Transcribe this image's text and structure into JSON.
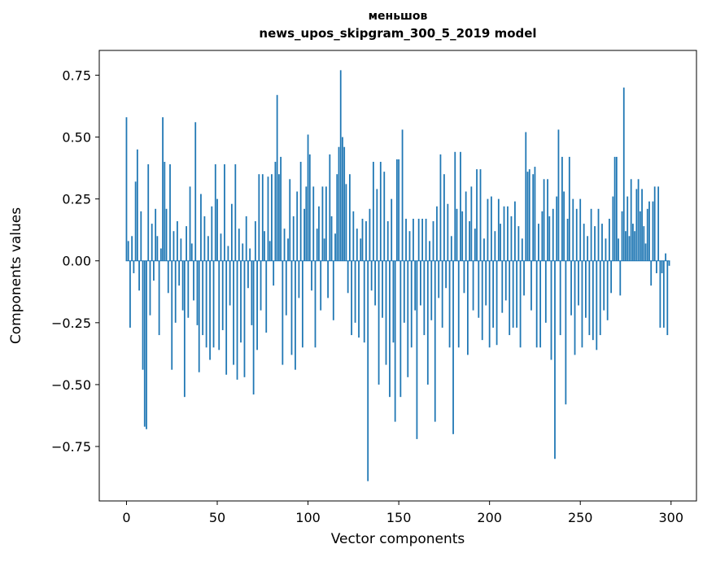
{
  "chart": {
    "title_line1": "меньшов",
    "title_line2": "news_upos_skipgram_300_5_2019 model",
    "xlabel": "Vector components",
    "ylabel": "Components values"
  },
  "chart_data": {
    "type": "bar",
    "title": "меньшов\nnews_upos_skipgram_300_5_2019 model",
    "xlabel": "Vector components",
    "ylabel": "Components values",
    "bar_color": "#1f77b4",
    "grid": false,
    "legend": "none",
    "xlim": [
      -15,
      314
    ],
    "ylim": [
      -0.97,
      0.85
    ],
    "xticks": [
      0,
      50,
      100,
      150,
      200,
      250,
      300
    ],
    "xtick_labels": [
      "0",
      "50",
      "100",
      "150",
      "200",
      "250",
      "300"
    ],
    "yticks": [
      -0.75,
      -0.5,
      -0.25,
      0,
      0.25,
      0.5,
      0.75
    ],
    "ytick_labels": [
      "−0.75",
      "−0.50",
      "−0.25",
      "0.00",
      "0.25",
      "0.50",
      "0.75"
    ],
    "n_components": 300,
    "values": [
      0.58,
      0.08,
      -0.27,
      0.1,
      -0.05,
      0.32,
      0.45,
      -0.12,
      0.2,
      -0.44,
      -0.67,
      -0.68,
      0.39,
      -0.22,
      0.15,
      -0.08,
      0.21,
      0.1,
      -0.3,
      0.05,
      0.58,
      0.4,
      0.21,
      -0.13,
      0.39,
      -0.44,
      0.12,
      -0.25,
      0.16,
      -0.1,
      0.09,
      -0.2,
      -0.55,
      0.14,
      -0.23,
      0.3,
      0.07,
      -0.16,
      0.56,
      -0.26,
      -0.45,
      0.27,
      -0.3,
      0.18,
      -0.35,
      0.1,
      -0.4,
      0.22,
      -0.35,
      0.39,
      0.25,
      -0.36,
      0.11,
      -0.28,
      0.39,
      -0.46,
      0.06,
      -0.18,
      0.23,
      -0.42,
      0.39,
      -0.48,
      0.13,
      -0.33,
      0.07,
      -0.47,
      0.18,
      -0.11,
      0.05,
      -0.26,
      -0.54,
      0.16,
      -0.36,
      0.35,
      -0.2,
      0.35,
      0.12,
      -0.29,
      0.34,
      0.08,
      0.35,
      -0.1,
      0.4,
      0.67,
      0.35,
      0.42,
      -0.42,
      0.13,
      -0.22,
      0.09,
      0.33,
      -0.38,
      0.18,
      -0.44,
      0.28,
      -0.15,
      0.4,
      -0.35,
      0.21,
      0.3,
      0.51,
      0.43,
      -0.12,
      0.3,
      -0.35,
      0.13,
      0.22,
      -0.2,
      0.3,
      0.09,
      0.3,
      -0.15,
      0.43,
      0.18,
      -0.24,
      0.11,
      0.35,
      0.46,
      0.77,
      0.5,
      0.46,
      0.31,
      -0.13,
      0.35,
      -0.3,
      0.2,
      -0.25,
      0.13,
      -0.31,
      0.09,
      0.17,
      -0.33,
      0.16,
      -0.89,
      0.21,
      -0.12,
      0.4,
      -0.18,
      0.29,
      -0.5,
      0.4,
      -0.23,
      0.36,
      -0.42,
      0.16,
      -0.55,
      0.25,
      -0.33,
      -0.65,
      0.41,
      0.41,
      -0.55,
      0.53,
      -0.25,
      0.17,
      -0.47,
      0.12,
      -0.35,
      0.17,
      -0.2,
      -0.72,
      0.17,
      -0.18,
      0.17,
      -0.3,
      0.17,
      -0.5,
      0.08,
      -0.24,
      0.16,
      -0.65,
      0.22,
      -0.15,
      0.43,
      -0.27,
      0.35,
      -0.11,
      0.23,
      -0.35,
      0.1,
      -0.7,
      0.44,
      0.21,
      -0.35,
      0.44,
      0.2,
      -0.13,
      0.28,
      -0.38,
      0.16,
      0.3,
      -0.2,
      0.13,
      0.37,
      -0.23,
      0.37,
      -0.32,
      0.09,
      -0.18,
      0.25,
      -0.35,
      0.26,
      -0.27,
      0.12,
      -0.34,
      0.25,
      0.15,
      -0.21,
      0.22,
      -0.16,
      0.22,
      -0.3,
      0.18,
      -0.27,
      0.24,
      -0.27,
      0.14,
      -0.35,
      0.09,
      -0.14,
      0.52,
      0.36,
      0.37,
      -0.2,
      0.35,
      0.38,
      -0.35,
      0.15,
      -0.35,
      0.2,
      0.33,
      -0.25,
      0.33,
      0.18,
      -0.4,
      0.21,
      -0.8,
      0.26,
      0.53,
      -0.3,
      0.42,
      0.28,
      -0.58,
      0.17,
      0.42,
      -0.22,
      0.25,
      -0.38,
      0.21,
      -0.18,
      0.25,
      -0.35,
      0.15,
      -0.23,
      0.1,
      -0.3,
      0.21,
      -0.32,
      0.14,
      -0.36,
      0.21,
      -0.3,
      0.15,
      -0.2,
      0.09,
      -0.24,
      0.17,
      -0.13,
      0.26,
      0.42,
      0.42,
      0.09,
      -0.14,
      0.2,
      0.7,
      0.12,
      0.26,
      0.1,
      0.33,
      0.15,
      0.12,
      0.29,
      0.33,
      0.2,
      0.29,
      0.14,
      0.07,
      0.21,
      0.24,
      -0.1,
      0.24,
      0.3,
      -0.05,
      0.3,
      -0.27,
      -0.05,
      -0.27,
      0.03,
      -0.3,
      -0.02
    ]
  }
}
